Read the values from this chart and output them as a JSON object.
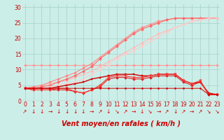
{
  "title": "",
  "xlabel": "Vent moyen/en rafales ( km/h )",
  "ylabel": "",
  "background_color": "#cceee8",
  "grid_color": "#aad4ce",
  "text_color": "#cc0000",
  "xlim": [
    -0.3,
    23.3
  ],
  "ylim": [
    0,
    31
  ],
  "yticks": [
    0,
    5,
    10,
    15,
    20,
    25,
    30
  ],
  "xticks": [
    0,
    1,
    2,
    3,
    4,
    5,
    6,
    7,
    8,
    9,
    10,
    11,
    12,
    13,
    14,
    15,
    16,
    17,
    18,
    19,
    20,
    21,
    22,
    23
  ],
  "series": [
    {
      "x": [
        0,
        1,
        2,
        3,
        4,
        5,
        6,
        7,
        8,
        9,
        10,
        11,
        12,
        13,
        14,
        15,
        16,
        17,
        18,
        19,
        20,
        21,
        22,
        23
      ],
      "y": [
        11.5,
        11.5,
        11.5,
        11.5,
        11.5,
        11.5,
        11.5,
        11.5,
        11.5,
        11.5,
        11.5,
        11.5,
        11.5,
        11.5,
        11.5,
        11.5,
        11.5,
        11.5,
        11.5,
        11.5,
        11.5,
        11.5,
        11.5,
        11.5
      ],
      "color": "#ff9999",
      "marker": "D",
      "markersize": 2.0,
      "linewidth": 0.8
    },
    {
      "x": [
        0,
        1,
        2,
        3,
        4,
        5,
        6,
        7,
        8,
        9,
        10,
        11,
        12,
        13,
        14,
        15,
        16,
        17,
        18,
        19,
        20,
        21,
        22,
        23
      ],
      "y": [
        4.0,
        4.5,
        5.0,
        5.5,
        6.0,
        6.5,
        7.5,
        8.5,
        9.5,
        11.0,
        12.5,
        14.0,
        15.5,
        17.0,
        18.5,
        20.0,
        21.5,
        22.5,
        23.5,
        24.5,
        25.5,
        26.0,
        26.5,
        26.5
      ],
      "color": "#ffbbbb",
      "marker": "D",
      "markersize": 2.0,
      "linewidth": 0.8
    },
    {
      "x": [
        0,
        1,
        2,
        3,
        4,
        5,
        6,
        7,
        8,
        9,
        10,
        11,
        12,
        13,
        14,
        15,
        16,
        17,
        18,
        19,
        20,
        21,
        22,
        23
      ],
      "y": [
        4.0,
        4.5,
        5.0,
        6.0,
        7.0,
        8.0,
        9.0,
        10.5,
        12.0,
        14.0,
        16.0,
        18.0,
        20.0,
        22.0,
        23.5,
        24.5,
        25.5,
        26.0,
        26.5,
        26.5,
        26.5,
        26.5,
        26.5,
        26.5
      ],
      "color": "#ff8888",
      "marker": "D",
      "markersize": 2.0,
      "linewidth": 0.8
    },
    {
      "x": [
        0,
        1,
        2,
        3,
        4,
        5,
        6,
        7,
        8,
        9,
        10,
        11,
        12,
        13,
        14,
        15,
        16,
        17,
        18,
        19,
        20,
        21,
        22,
        23
      ],
      "y": [
        4.0,
        4.0,
        4.5,
        5.0,
        6.0,
        7.0,
        8.0,
        9.5,
        11.0,
        13.5,
        15.5,
        17.5,
        19.5,
        21.5,
        23.0,
        24.0,
        25.0,
        26.0,
        26.5,
        26.5,
        26.5,
        26.5,
        26.5,
        26.5
      ],
      "color": "#ff6666",
      "marker": "D",
      "markersize": 2.0,
      "linewidth": 0.8
    },
    {
      "x": [
        0,
        1,
        2,
        3,
        4,
        5,
        6,
        7,
        8,
        9,
        10,
        11,
        12,
        13,
        14,
        15,
        16,
        17,
        18,
        19,
        20,
        21,
        22,
        23
      ],
      "y": [
        4.0,
        4.0,
        4.0,
        4.5,
        5.0,
        5.5,
        6.0,
        7.0,
        8.5,
        10.0,
        11.5,
        13.5,
        15.0,
        16.0,
        17.5,
        19.0,
        20.5,
        22.0,
        23.5,
        24.5,
        25.5,
        26.0,
        26.5,
        26.5
      ],
      "color": "#ffcccc",
      "marker": "D",
      "markersize": 2.0,
      "linewidth": 0.7
    },
    {
      "x": [
        0,
        1,
        2,
        3,
        4,
        5,
        6,
        7,
        8,
        9,
        10,
        11,
        12,
        13,
        14,
        15,
        16,
        17,
        18,
        19,
        20,
        21,
        22,
        23
      ],
      "y": [
        4.0,
        4.0,
        4.0,
        4.0,
        4.5,
        5.0,
        5.5,
        6.0,
        7.0,
        7.5,
        8.0,
        8.5,
        8.5,
        8.5,
        8.0,
        8.0,
        8.5,
        8.5,
        8.5,
        6.5,
        5.5,
        6.0,
        2.5,
        2.0
      ],
      "color": "#cc0000",
      "marker": "s",
      "markersize": 2.0,
      "linewidth": 1.0
    },
    {
      "x": [
        0,
        1,
        2,
        3,
        4,
        5,
        6,
        7,
        8,
        9,
        10,
        11,
        12,
        13,
        14,
        15,
        16,
        17,
        18,
        19,
        20,
        21,
        22,
        23
      ],
      "y": [
        4.0,
        3.5,
        3.5,
        3.5,
        3.5,
        3.5,
        3.0,
        2.5,
        3.5,
        4.5,
        7.0,
        7.5,
        7.5,
        7.0,
        7.0,
        7.5,
        8.0,
        8.0,
        8.0,
        6.0,
        5.0,
        6.0,
        2.0,
        2.0
      ],
      "color": "#dd2222",
      "marker": "D",
      "markersize": 2.0,
      "linewidth": 0.8
    },
    {
      "x": [
        0,
        1,
        2,
        3,
        4,
        5,
        6,
        7,
        8,
        9,
        10,
        11,
        12,
        13,
        14,
        15,
        16,
        17,
        18,
        19,
        20,
        21,
        22,
        23
      ],
      "y": [
        4.0,
        3.5,
        3.5,
        3.5,
        4.0,
        4.0,
        3.0,
        2.5,
        3.5,
        5.0,
        7.5,
        8.0,
        8.0,
        7.5,
        7.5,
        8.0,
        8.5,
        8.5,
        8.5,
        6.5,
        5.5,
        6.5,
        2.0,
        2.0
      ],
      "color": "#ff3333",
      "marker": "v",
      "markersize": 2.5,
      "linewidth": 0.8
    },
    {
      "x": [
        0,
        1,
        2,
        3,
        4,
        5,
        6,
        7,
        8,
        9,
        10,
        11,
        12,
        13,
        14,
        15,
        16,
        17,
        18,
        19,
        20,
        21,
        22,
        23
      ],
      "y": [
        4.0,
        4.0,
        4.0,
        4.0,
        4.0,
        4.0,
        4.0,
        4.0,
        4.0,
        4.0,
        4.0,
        4.0,
        4.0,
        4.0,
        4.0,
        4.0,
        4.0,
        4.0,
        4.0,
        4.0,
        4.0,
        4.0,
        2.0,
        2.0
      ],
      "color": "#cc0000",
      "marker": "D",
      "markersize": 1.5,
      "linewidth": 0.7
    }
  ],
  "arrow_labels": [
    "↗",
    "↓",
    "↓",
    "→",
    "↓",
    "↓",
    "↓",
    "↓",
    "→",
    "↗",
    "↓",
    "↘",
    "↗",
    "→",
    "↓",
    "↘",
    "→",
    "↗",
    "↓",
    "↗",
    "→",
    "↗",
    "↘",
    "↘"
  ],
  "xlabel_fontsize": 7,
  "tick_fontsize": 5.5,
  "arrow_fontsize": 5.5
}
